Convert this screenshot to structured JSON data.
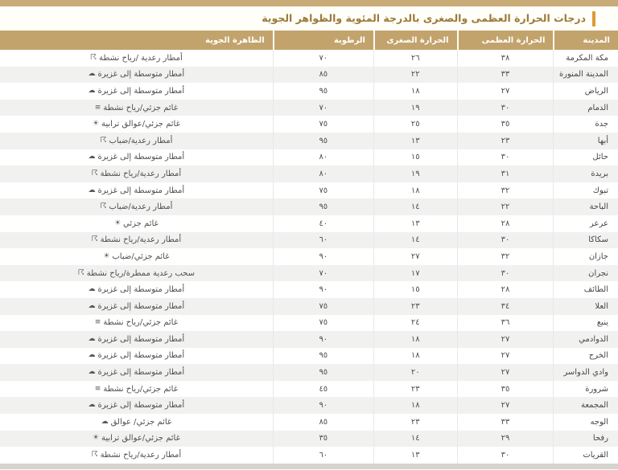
{
  "page": {
    "title": "درجات الحرارة العظمى والصغرى بالدرجة المئوية والظواهر الجوية"
  },
  "colors": {
    "accent_bar": "#df9a33",
    "header_bg": "#c3a36c",
    "title_text": "#9b7a38",
    "row_alt_bg": "#f1f1f0"
  },
  "icons": {
    "thunder-rain-icon": "☈",
    "rain-cloud-icon": "☁",
    "wind-cloud-icon": "≡",
    "sun-cloud-icon": "☀",
    "cloud-icon": "☁"
  },
  "table": {
    "columns": [
      {
        "key": "city",
        "label": "المدينة"
      },
      {
        "key": "max",
        "label": "الحرارة العظمى"
      },
      {
        "key": "min",
        "label": "الحرارة الصغرى"
      },
      {
        "key": "humidity",
        "label": "الرطوبة"
      },
      {
        "key": "phenomenon",
        "label": "الظاهرة الجوية"
      }
    ],
    "rows": [
      {
        "city": "مكة المكرمة",
        "max": "٣٨",
        "min": "٢٦",
        "humidity": "٧٠",
        "phenomenon": "أمطار رعدية /رياح نشطة",
        "icon": "thunder-rain-icon"
      },
      {
        "city": "المدينة المنورة",
        "max": "٣٣",
        "min": "٢٢",
        "humidity": "٨٥",
        "phenomenon": "أمطار متوسطة إلى غزيرة",
        "icon": "rain-cloud-icon"
      },
      {
        "city": "الرياض",
        "max": "٢٧",
        "min": "١٨",
        "humidity": "٩٥",
        "phenomenon": "أمطار متوسطة إلى غزيرة",
        "icon": "rain-cloud-icon"
      },
      {
        "city": "الدمام",
        "max": "٣٠",
        "min": "١٩",
        "humidity": "٧٠",
        "phenomenon": "غائم جزئي/رياح نشطة",
        "icon": "wind-cloud-icon"
      },
      {
        "city": "جدة",
        "max": "٣٥",
        "min": "٢٥",
        "humidity": "٧٥",
        "phenomenon": "غائم جزئي/عوالق ترابية",
        "icon": "sun-cloud-icon"
      },
      {
        "city": "أبها",
        "max": "٢٣",
        "min": "١٣",
        "humidity": "٩٥",
        "phenomenon": "أمطار رعدية/ضباب",
        "icon": "thunder-rain-icon"
      },
      {
        "city": "حائل",
        "max": "٣٠",
        "min": "١٥",
        "humidity": "٨٠",
        "phenomenon": "أمطار متوسطة إلى غزيرة",
        "icon": "rain-cloud-icon"
      },
      {
        "city": "بريدة",
        "max": "٣١",
        "min": "١٩",
        "humidity": "٨٠",
        "phenomenon": "أمطار رعدية/رياح نشطة",
        "icon": "thunder-rain-icon"
      },
      {
        "city": "تبوك",
        "max": "٣٢",
        "min": "١٨",
        "humidity": "٧٥",
        "phenomenon": "أمطار متوسطة إلى غزيرة",
        "icon": "rain-cloud-icon"
      },
      {
        "city": "الباحة",
        "max": "٢٢",
        "min": "١٤",
        "humidity": "٩٥",
        "phenomenon": "أمطار رعدية/ضباب",
        "icon": "thunder-rain-icon"
      },
      {
        "city": "عرعر",
        "max": "٢٨",
        "min": "١٣",
        "humidity": "٤٠",
        "phenomenon": "غائم جزئي",
        "icon": "sun-cloud-icon"
      },
      {
        "city": "سكاكا",
        "max": "٣٠",
        "min": "١٤",
        "humidity": "٦٠",
        "phenomenon": "أمطار رعدية/رياح نشطة",
        "icon": "thunder-rain-icon"
      },
      {
        "city": "جازان",
        "max": "٣٢",
        "min": "٢٧",
        "humidity": "٩٠",
        "phenomenon": "غائم جزئي/ضباب",
        "icon": "sun-cloud-icon"
      },
      {
        "city": "نجران",
        "max": "٣٠",
        "min": "١٧",
        "humidity": "٧٠",
        "phenomenon": "سحب رعدية ممطرة/رياح نشطة",
        "icon": "thunder-rain-icon"
      },
      {
        "city": "الطائف",
        "max": "٢٨",
        "min": "١٥",
        "humidity": "٩٠",
        "phenomenon": "أمطار متوسطة إلى غزيرة",
        "icon": "rain-cloud-icon"
      },
      {
        "city": "العلا",
        "max": "٣٤",
        "min": "٢٣",
        "humidity": "٧٥",
        "phenomenon": "أمطار متوسطة إلى غزيرة",
        "icon": "rain-cloud-icon"
      },
      {
        "city": "ينبع",
        "max": "٣٦",
        "min": "٢٤",
        "humidity": "٧٥",
        "phenomenon": "غائم جزئي/رياح نشطة",
        "icon": "wind-cloud-icon"
      },
      {
        "city": "الدوادمي",
        "max": "٢٧",
        "min": "١٨",
        "humidity": "٩٠",
        "phenomenon": "أمطار متوسطة إلى غزيرة",
        "icon": "rain-cloud-icon"
      },
      {
        "city": "الخرج",
        "max": "٢٧",
        "min": "١٨",
        "humidity": "٩٥",
        "phenomenon": "أمطار متوسطة إلى غزيرة",
        "icon": "rain-cloud-icon"
      },
      {
        "city": "وادي الدواسر",
        "max": "٢٧",
        "min": "٢٠",
        "humidity": "٩٥",
        "phenomenon": "أمطار متوسطة إلى غزيرة",
        "icon": "rain-cloud-icon"
      },
      {
        "city": "شرورة",
        "max": "٣٥",
        "min": "٢٣",
        "humidity": "٤٥",
        "phenomenon": "غائم جزئي/رياح نشطة",
        "icon": "wind-cloud-icon"
      },
      {
        "city": "المجمعة",
        "max": "٢٧",
        "min": "١٨",
        "humidity": "٩٠",
        "phenomenon": "أمطار متوسطة إلى غزيرة",
        "icon": "rain-cloud-icon"
      },
      {
        "city": "الوجه",
        "max": "٣٣",
        "min": "٢٣",
        "humidity": "٨٥",
        "phenomenon": "غائم جزئي/ عوالق",
        "icon": "cloud-icon"
      },
      {
        "city": "رفحا",
        "max": "٢٩",
        "min": "١٤",
        "humidity": "٣٥",
        "phenomenon": "غائم جزئي/عوالق ترابية",
        "icon": "sun-cloud-icon"
      },
      {
        "city": "القريات",
        "max": "٣٠",
        "min": "١٣",
        "humidity": "٦٠",
        "phenomenon": "أمطار رعدية/رياح نشطة",
        "icon": "thunder-rain-icon"
      }
    ]
  }
}
